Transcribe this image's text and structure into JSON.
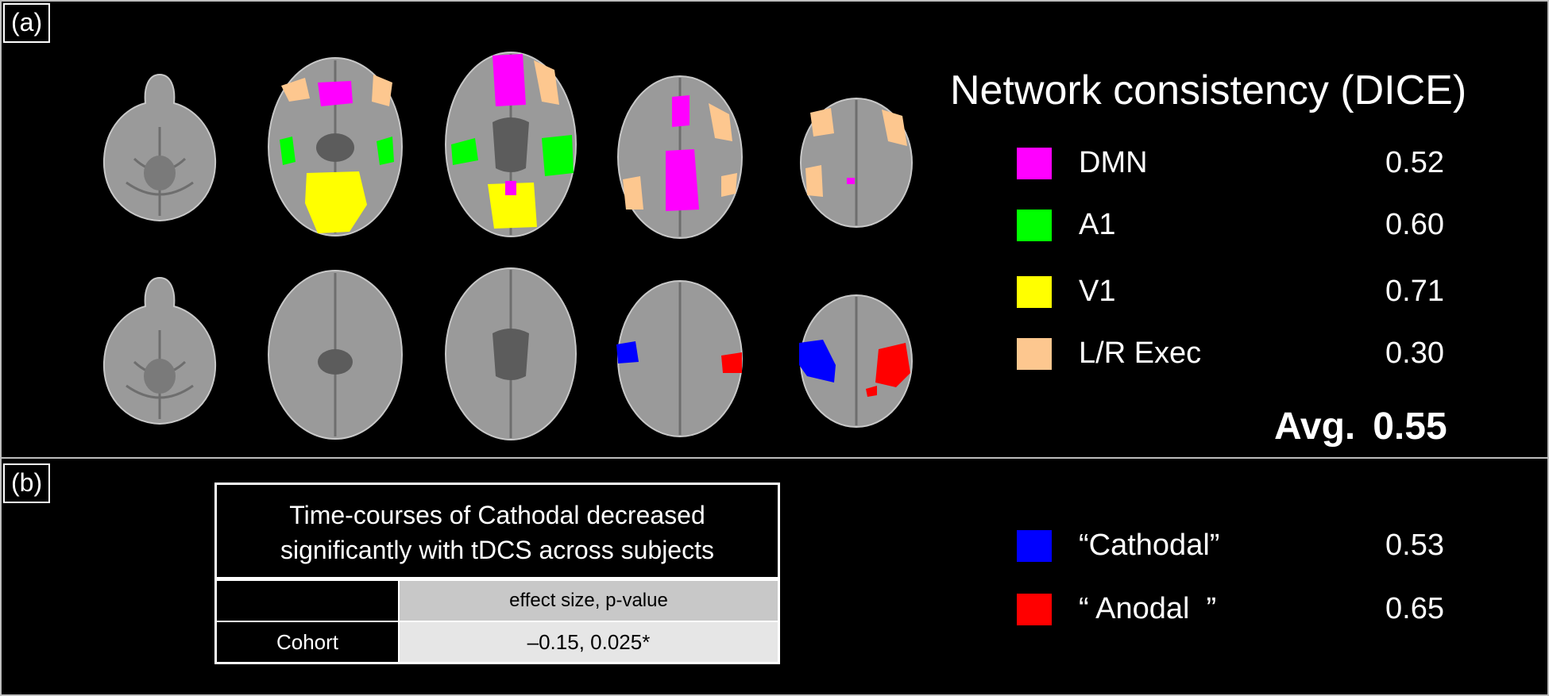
{
  "panel_a": {
    "tag": "(a)",
    "legend": {
      "title": "Network consistency (DICE)",
      "items": [
        {
          "label": "DMN",
          "value": "0.52",
          "color": "#ff00ff"
        },
        {
          "label": "A1",
          "value": "0.60",
          "color": "#00ff00"
        },
        {
          "label": "V1",
          "value": "0.71",
          "color": "#ffff00"
        },
        {
          "label": "L/R Exec",
          "value": "0.30",
          "color": "#fdc78f"
        }
      ],
      "avg_label": "Avg.",
      "avg_value": "0.55"
    }
  },
  "panel_b": {
    "tag": "(b)",
    "table": {
      "caption_line1": "Time-courses of Cathodal decreased",
      "caption_line2": "significantly with tDCS across subjects",
      "header_left": "",
      "header_right": "effect size, p-value",
      "row_label": "Cohort",
      "row_value": "–0.15, 0.025*"
    },
    "legend": {
      "items": [
        {
          "label": "“Cathodal”",
          "value": "0.53",
          "color": "#0000ff"
        },
        {
          "label": "“ Anodal  ”",
          "value": "0.65",
          "color": "#ff0000"
        }
      ]
    }
  },
  "colors": {
    "background": "#000000",
    "frame": "#bdbdbd",
    "brain_tissue": "#9c9c9c"
  },
  "icons": {
    "brain_slices": "axial-brain-slice-icon"
  }
}
